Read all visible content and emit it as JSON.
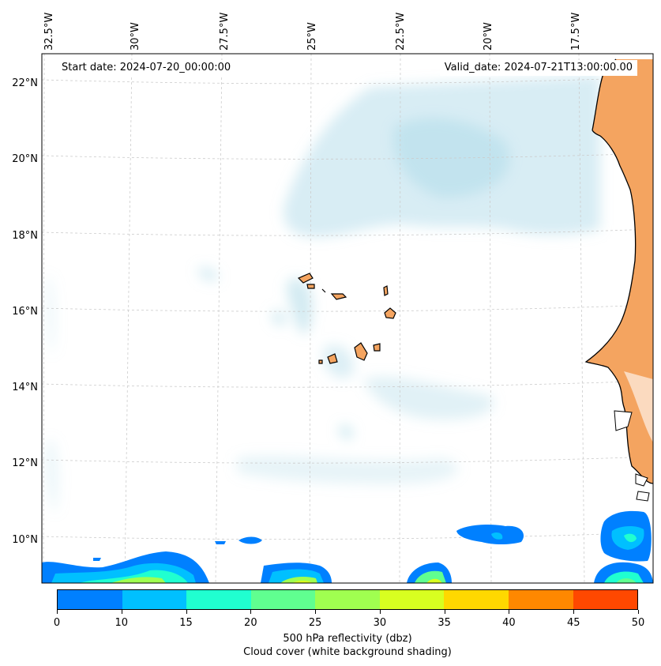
{
  "map": {
    "lon_labels": [
      "32.5°W",
      "30°W",
      "27.5°W",
      "25°W",
      "22.5°W",
      "20°W",
      "17.5°W"
    ],
    "lat_labels": [
      "22°N",
      "20°N",
      "18°N",
      "16°N",
      "14°N",
      "12°N",
      "10°N"
    ],
    "lon_range": [
      -32.5,
      -15.5
    ],
    "lat_range": [
      8.9,
      22.8
    ]
  },
  "info": {
    "start_date": "Start date: 2024-07-20_00:00:00",
    "valid_date": "Valid_date: 2024-07-21T13:00:00.00"
  },
  "colorbar": {
    "ticks": [
      "0",
      "10",
      "15",
      "20",
      "25",
      "30",
      "35",
      "40",
      "45",
      "50"
    ],
    "colors": [
      "#0080ff",
      "#00c0ff",
      "#20ffd0",
      "#60ff90",
      "#a0ff50",
      "#d8ff20",
      "#ffd800",
      "#ff8800",
      "#ff4800"
    ],
    "label": "500 hPa reflectivity (dbz)",
    "sublabel": "Cloud cover (white background shading)"
  },
  "colors": {
    "land": "#f4a460",
    "cloud": "#a8d8e6",
    "grid": "#cccccc"
  }
}
